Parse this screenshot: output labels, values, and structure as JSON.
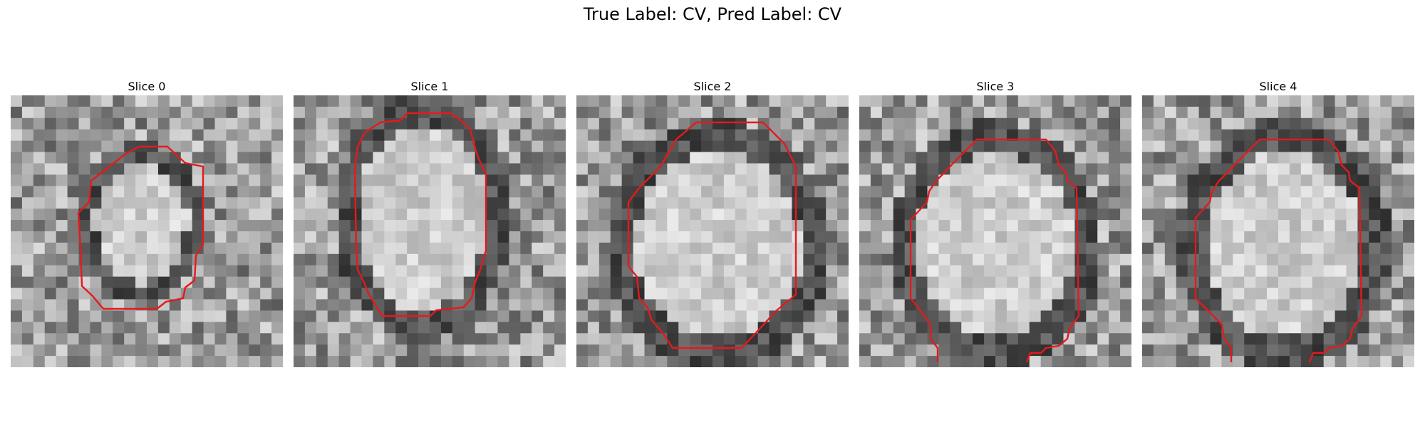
{
  "figure": {
    "title": "True Label: CV, Pred Label: CV"
  },
  "panels": [
    {
      "title": "Slice 0",
      "contour_color": "#e41a1c"
    },
    {
      "title": "Slice 1",
      "contour_color": "#e41a1c"
    },
    {
      "title": "Slice 2",
      "contour_color": "#e41a1c"
    },
    {
      "title": "Slice 3",
      "contour_color": "#e41a1c"
    },
    {
      "title": "Slice 4",
      "contour_color": "#e41a1c"
    }
  ],
  "colormap": "gray",
  "axes_visible": false
}
